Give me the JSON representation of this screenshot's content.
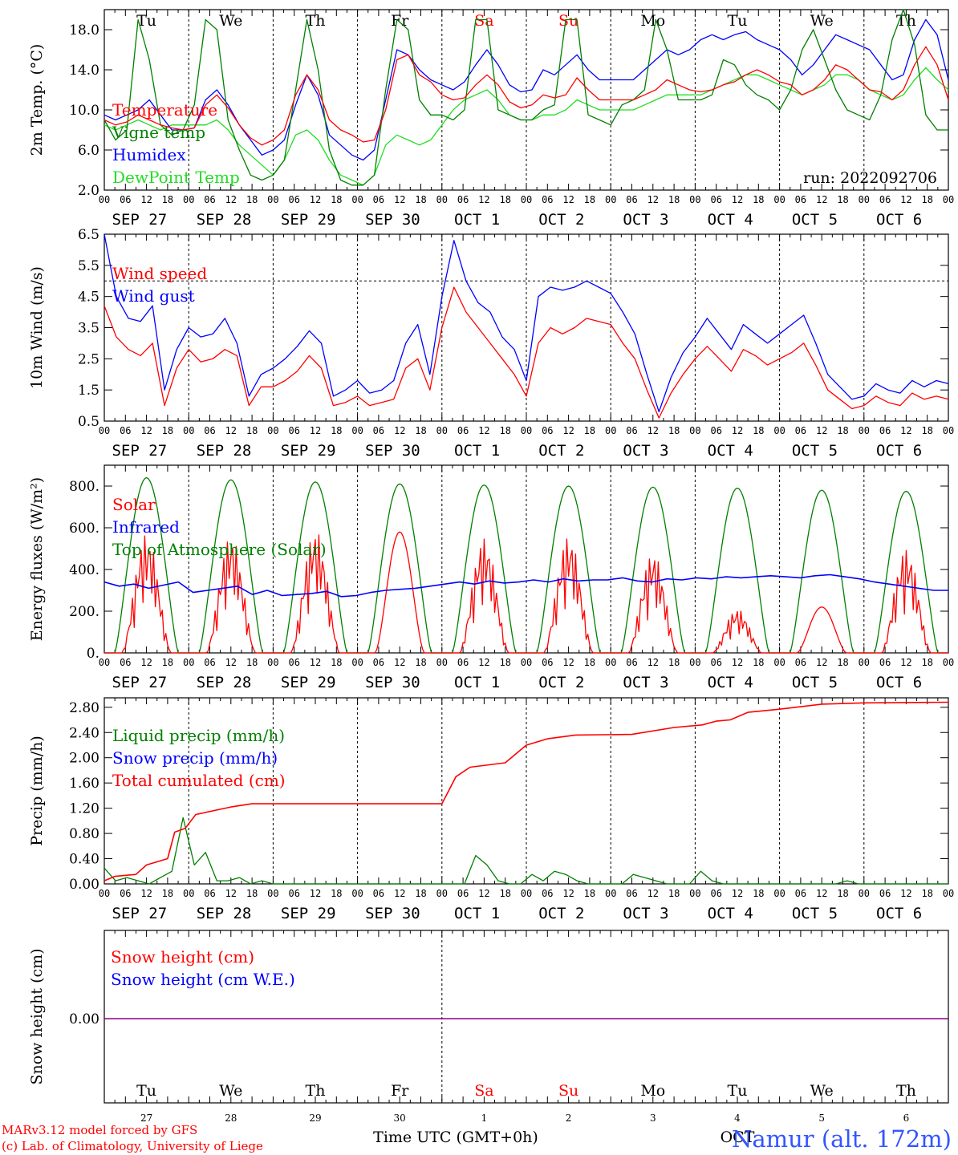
{
  "colors": {
    "red": "#ff0000",
    "green": "#008000",
    "blue": "#0000ff",
    "lightgreen": "#22dd22",
    "purple": "#880088",
    "station": "#3355ff",
    "axis": "#000000"
  },
  "days": {
    "weekday": [
      "Tu",
      "We",
      "Th",
      "Fr",
      "Sa",
      "Su",
      "Mo",
      "Tu",
      "We",
      "Th"
    ],
    "weekday_colors": [
      "#000000",
      "#000000",
      "#000000",
      "#000000",
      "#ff0000",
      "#ff0000",
      "#000000",
      "#000000",
      "#000000",
      "#000000"
    ],
    "dates": [
      "SEP 27",
      "SEP 28",
      "SEP 29",
      "SEP 30",
      "OCT  1",
      "OCT  2",
      "OCT  3",
      "OCT  4",
      "OCT  5",
      "OCT  6"
    ],
    "day_numbers": [
      "27",
      "28",
      "29",
      "30",
      "1",
      "2",
      "3",
      "4",
      "5",
      "6"
    ],
    "hour_ticks": [
      "00",
      "06",
      "12",
      "18"
    ],
    "final_tick": "00"
  },
  "run_label": "run: 2022092706",
  "footer": {
    "credit_line1": "MARv3.12 model forced by GFS",
    "credit_line2": "(c) Lab. of Climatology, University of Liege",
    "time_axis_label": "Time UTC (GMT+0h)",
    "month_label": "OCT",
    "station": "Namur (alt. 172m)"
  },
  "chart_data": [
    {
      "type": "line",
      "ylabel": "2m Temp. (°C)",
      "ylim": [
        2.0,
        20.0
      ],
      "yticks": [
        "2.0",
        "6.0",
        "10.0",
        "14.0",
        "18.0"
      ],
      "ytick_values": [
        2,
        6,
        10,
        14,
        18
      ],
      "x": "hours since SEP 27 00 UTC (3-hourly)",
      "series": [
        {
          "name": "Temperature",
          "color": "#ff0000",
          "values": [
            9.0,
            8.5,
            8.8,
            9.5,
            9.0,
            8.5,
            8.2,
            8.0,
            8.2,
            10.5,
            11.5,
            10.2,
            8.5,
            7.2,
            6.5,
            7.0,
            8.0,
            11.5,
            13.5,
            12.0,
            9.0,
            8.0,
            7.5,
            6.8,
            7.0,
            10.0,
            15.0,
            15.5,
            13.5,
            12.8,
            11.5,
            11.0,
            11.2,
            12.5,
            13.5,
            12.5,
            10.8,
            10.2,
            10.5,
            11.5,
            11.2,
            11.5,
            13.2,
            12.0,
            11.0,
            11.0,
            11.0,
            11.0,
            11.5,
            12.0,
            13.0,
            12.5,
            12.0,
            11.8,
            12.0,
            12.5,
            12.8,
            13.5,
            14.0,
            13.5,
            12.8,
            12.5,
            11.5,
            12.0,
            13.0,
            14.5,
            14.0,
            13.0,
            12.0,
            11.8,
            11.0,
            12.0,
            14.5,
            16.3,
            14.5,
            11.0
          ]
        },
        {
          "name": "Vigne temp",
          "color": "#008000",
          "values": [
            9.0,
            7.0,
            8.0,
            19.0,
            15.0,
            8.5,
            7.5,
            8.0,
            10.5,
            19.0,
            18.0,
            9.0,
            6.0,
            3.5,
            3.0,
            3.5,
            5.0,
            12.0,
            19.0,
            14.0,
            6.0,
            3.0,
            2.5,
            2.5,
            3.5,
            12.0,
            19.0,
            18.0,
            11.0,
            9.5,
            9.5,
            9.0,
            10.0,
            19.0,
            19.0,
            10.0,
            9.5,
            9.0,
            9.0,
            10.0,
            10.5,
            19.0,
            19.0,
            9.5,
            9.0,
            8.5,
            10.5,
            11.0,
            12.0,
            19.0,
            16.0,
            11.0,
            11.0,
            11.0,
            11.5,
            15.0,
            14.5,
            12.5,
            11.5,
            11.0,
            10.0,
            12.0,
            16.0,
            18.0,
            15.0,
            12.0,
            10.0,
            9.5,
            9.0,
            11.5,
            17.0,
            20.0,
            16.5,
            9.5,
            8.0,
            8.0
          ]
        },
        {
          "name": "Humidex",
          "color": "#0000ff",
          "values": [
            9.5,
            9.0,
            9.5,
            10.0,
            11.0,
            9.5,
            8.0,
            8.0,
            8.2,
            11.0,
            12.0,
            10.5,
            8.5,
            7.0,
            5.5,
            6.0,
            7.0,
            10.5,
            13.5,
            11.5,
            7.5,
            6.5,
            5.5,
            5.0,
            6.0,
            11.0,
            16.0,
            15.5,
            14.0,
            13.0,
            12.5,
            12.0,
            12.8,
            14.5,
            16.0,
            14.5,
            12.5,
            11.8,
            12.0,
            14.0,
            13.5,
            14.5,
            15.5,
            14.0,
            13.0,
            13.0,
            13.0,
            13.0,
            14.0,
            15.0,
            16.0,
            15.5,
            16.0,
            17.0,
            17.5,
            17.0,
            17.5,
            17.8,
            17.0,
            16.5,
            16.0,
            15.0,
            13.5,
            14.5,
            16.0,
            17.5,
            17.0,
            16.5,
            16.0,
            14.5,
            13.0,
            13.5,
            17.0,
            19.0,
            17.5,
            13.0
          ]
        },
        {
          "name": "DewPoint Temp",
          "color": "#22dd22",
          "values": [
            8.5,
            8.0,
            8.5,
            9.0,
            8.5,
            8.0,
            8.5,
            8.5,
            8.5,
            8.5,
            9.0,
            8.0,
            6.5,
            5.5,
            4.5,
            3.5,
            5.0,
            7.5,
            8.0,
            7.0,
            5.0,
            3.5,
            3.0,
            2.5,
            3.5,
            6.5,
            7.5,
            7.0,
            6.5,
            7.0,
            8.5,
            10.0,
            11.0,
            11.5,
            12.0,
            11.0,
            9.5,
            9.0,
            9.0,
            9.5,
            9.5,
            10.0,
            11.0,
            10.5,
            10.0,
            10.0,
            10.0,
            10.0,
            10.5,
            11.0,
            11.5,
            11.5,
            11.5,
            11.5,
            12.0,
            12.5,
            13.0,
            13.5,
            13.5,
            13.0,
            12.5,
            12.0,
            11.5,
            12.0,
            12.5,
            13.5,
            13.5,
            13.0,
            12.0,
            11.5,
            11.0,
            11.5,
            13.0,
            14.2,
            13.0,
            12.0
          ]
        }
      ],
      "annotation": "run: 2022092706"
    },
    {
      "type": "line",
      "ylabel": "10m Wind (m/s)",
      "ylim": [
        0.5,
        6.5
      ],
      "yticks": [
        "0.5",
        "1.5",
        "2.5",
        "3.5",
        "4.5",
        "5.5",
        "6.5"
      ],
      "ytick_values": [
        0.5,
        1.5,
        2.5,
        3.5,
        4.5,
        5.5,
        6.5
      ],
      "reference_line": 5.0,
      "series": [
        {
          "name": "Wind speed",
          "color": "#ff0000",
          "values": [
            4.2,
            3.2,
            2.8,
            2.6,
            3.0,
            1.0,
            2.2,
            2.8,
            2.4,
            2.5,
            2.8,
            2.6,
            1.0,
            1.6,
            1.6,
            1.8,
            2.1,
            2.6,
            2.2,
            1.0,
            1.1,
            1.3,
            1.0,
            1.1,
            1.2,
            2.2,
            2.5,
            1.5,
            3.5,
            4.8,
            4.0,
            3.5,
            3.0,
            2.5,
            2.0,
            1.3,
            3.0,
            3.5,
            3.3,
            3.5,
            3.8,
            3.7,
            3.6,
            3.0,
            2.5,
            1.5,
            0.6,
            1.4,
            2.0,
            2.5,
            2.9,
            2.5,
            2.1,
            2.8,
            2.6,
            2.3,
            2.5,
            2.7,
            3.0,
            2.3,
            1.5,
            1.2,
            0.9,
            1.0,
            1.3,
            1.1,
            1.0,
            1.4,
            1.2,
            1.3,
            1.2
          ]
        },
        {
          "name": "Wind gust",
          "color": "#0000ff",
          "values": [
            6.5,
            4.5,
            3.8,
            3.7,
            4.2,
            1.5,
            2.8,
            3.5,
            3.2,
            3.3,
            3.8,
            3.0,
            1.3,
            2.0,
            2.2,
            2.5,
            2.9,
            3.4,
            3.0,
            1.3,
            1.5,
            1.8,
            1.4,
            1.5,
            1.8,
            3.0,
            3.6,
            2.0,
            4.5,
            6.3,
            5.0,
            4.3,
            4.0,
            3.2,
            2.8,
            1.8,
            4.5,
            4.8,
            4.7,
            4.8,
            5.0,
            4.8,
            4.6,
            4.0,
            3.3,
            2.0,
            0.8,
            1.9,
            2.7,
            3.2,
            3.8,
            3.3,
            2.8,
            3.6,
            3.3,
            3.0,
            3.3,
            3.6,
            3.9,
            3.0,
            2.0,
            1.6,
            1.2,
            1.3,
            1.7,
            1.5,
            1.4,
            1.8,
            1.6,
            1.8,
            1.7
          ]
        }
      ]
    },
    {
      "type": "line",
      "ylabel": "Energy fluxes (W/m²)",
      "ylim": [
        0,
        900
      ],
      "yticks": [
        "0.",
        "200.",
        "400.",
        "600.",
        "800."
      ],
      "ytick_values": [
        0,
        200,
        400,
        600,
        800
      ],
      "toa_peaks": [
        840,
        830,
        820,
        810,
        805,
        800,
        795,
        790,
        780,
        775
      ],
      "solar_peaks": [
        570,
        560,
        590,
        580,
        550,
        560,
        480,
        210,
        220,
        500
      ],
      "solar_noisy": [
        true,
        true,
        true,
        false,
        true,
        true,
        true,
        true,
        false,
        true
      ],
      "infrared_values": [
        340,
        320,
        330,
        310,
        325,
        340,
        290,
        300,
        310,
        320,
        280,
        300,
        275,
        280,
        285,
        295,
        270,
        275,
        290,
        300,
        305,
        310,
        320,
        330,
        340,
        330,
        345,
        335,
        340,
        350,
        340,
        355,
        345,
        350,
        350,
        360,
        345,
        340,
        355,
        350,
        360,
        355,
        365,
        360,
        365,
        370,
        365,
        360,
        370,
        375,
        365,
        355,
        340,
        330,
        320,
        310,
        300,
        300
      ],
      "series": [
        {
          "name": "Solar",
          "color": "#ff0000"
        },
        {
          "name": "Infrared",
          "color": "#0000ff"
        },
        {
          "name": "Top of Atmosphere (Solar)",
          "color": "#008000"
        }
      ]
    },
    {
      "type": "line",
      "ylabel": "Precip (mm/h)",
      "ylim": [
        0.0,
        2.95
      ],
      "yticks": [
        "0.00",
        "0.40",
        "0.80",
        "1.20",
        "1.60",
        "2.00",
        "2.40",
        "2.80"
      ],
      "ytick_values": [
        0,
        0.4,
        0.8,
        1.2,
        1.6,
        2.0,
        2.4,
        2.8
      ],
      "series": [
        {
          "name": "Liquid precip (mm/h)",
          "color": "#008000",
          "values": [
            0.25,
            0.05,
            0.1,
            0.05,
            0.0,
            0.1,
            0.2,
            1.05,
            0.3,
            0.5,
            0.05,
            0.05,
            0.1,
            0.0,
            0.05,
            0.0,
            0.0,
            0.0,
            0.0,
            0.0,
            0.0,
            0.0,
            0.0,
            0.0,
            0.0,
            0.0,
            0.0,
            0.0,
            0.0,
            0.0,
            0.0,
            0.0,
            0.0,
            0.45,
            0.3,
            0.05,
            0.0,
            0.0,
            0.15,
            0.05,
            0.2,
            0.15,
            0.05,
            0.0,
            0.0,
            0.0,
            0.0,
            0.15,
            0.1,
            0.05,
            0.0,
            0.0,
            0.0,
            0.2,
            0.05,
            0.0,
            0.0,
            0.0,
            0.0,
            0.0,
            0.0,
            0.0,
            0.0,
            0.0,
            0.0,
            0.0,
            0.05,
            0.0,
            0.0,
            0.0,
            0.0,
            0.0,
            0.0,
            0.0,
            0.0,
            0.0
          ]
        },
        {
          "name": "Snow precip (mm/h)",
          "color": "#0000ff",
          "values": [
            0
          ]
        },
        {
          "name": "Total cumulated (cm)",
          "color": "#ff0000",
          "points": [
            [
              0,
              0.05
            ],
            [
              3,
              0.12
            ],
            [
              9,
              0.15
            ],
            [
              12,
              0.3
            ],
            [
              18,
              0.4
            ],
            [
              20,
              0.82
            ],
            [
              23,
              0.88
            ],
            [
              26,
              1.1
            ],
            [
              36,
              1.22
            ],
            [
              42,
              1.27
            ],
            [
              96,
              1.27
            ],
            [
              100,
              1.7
            ],
            [
              104,
              1.85
            ],
            [
              114,
              1.92
            ],
            [
              120,
              2.2
            ],
            [
              126,
              2.3
            ],
            [
              134,
              2.36
            ],
            [
              150,
              2.37
            ],
            [
              162,
              2.48
            ],
            [
              170,
              2.52
            ],
            [
              174,
              2.58
            ],
            [
              178,
              2.6
            ],
            [
              183,
              2.72
            ],
            [
              192,
              2.77
            ],
            [
              204,
              2.85
            ],
            [
              216,
              2.87
            ],
            [
              240,
              2.88
            ]
          ]
        }
      ]
    },
    {
      "type": "line",
      "ylabel": "Snow height (cm)",
      "yticks": [
        "0.00"
      ],
      "series": [
        {
          "name": "Snow height (cm)",
          "color": "#ff0000",
          "values": [
            0.0
          ]
        },
        {
          "name": "Snow height (cm W.E.)",
          "color": "#0000ff",
          "values": [
            0.0
          ]
        }
      ]
    }
  ]
}
